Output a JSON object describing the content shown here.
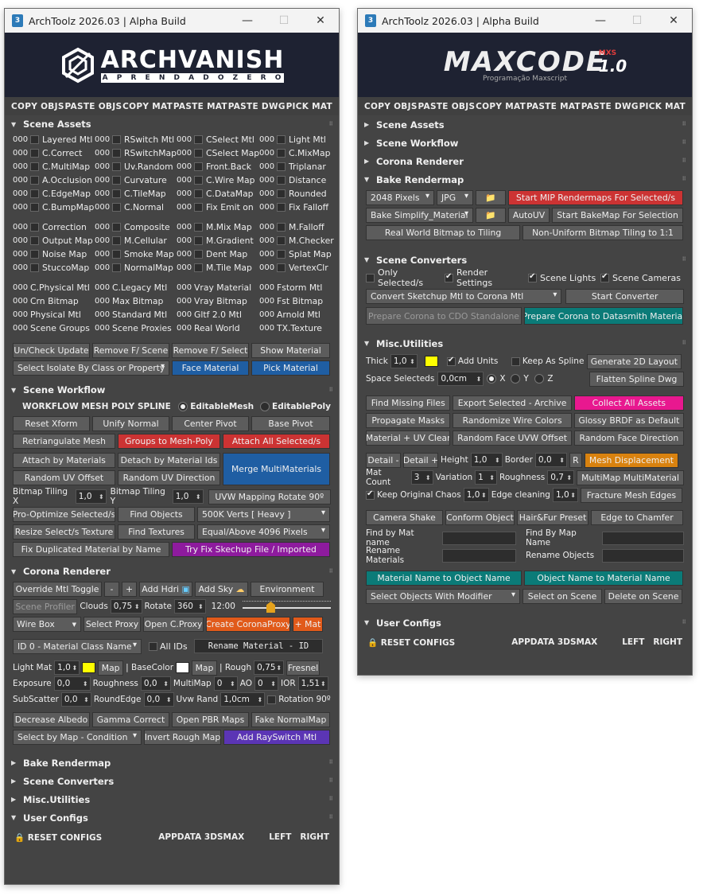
{
  "window": {
    "title": "ArchToolz 2026.03 | Alpha Build"
  },
  "logo1": {
    "big": "ARCHVANISH",
    "small": [
      "A",
      "P",
      "R",
      "E",
      "N",
      "D",
      "A",
      "D",
      "O",
      "Z",
      "E",
      "R",
      "O"
    ]
  },
  "logo2": {
    "big": "MAXCODE",
    "mxs": "MXS",
    "ver": "1.0",
    "sub": "Programação Maxscript"
  },
  "topbar": [
    "COPY OBJS",
    "PASTE OBJS",
    "COPY MAT",
    "PASTE MAT",
    "PASTE DWG",
    "PICK MAT"
  ],
  "sections": {
    "assets": "Scene Assets",
    "workflow": "Scene Workflow",
    "corona": "Corona Renderer",
    "bake": "Bake Rendermap",
    "converters": "Scene Converters",
    "misc": "Misc.Utilities",
    "user": "User Configs"
  },
  "assets": {
    "block1": [
      [
        "Layered Mtl",
        "RSwitch Mtl",
        "CSelect Mtl",
        "Light Mtl"
      ],
      [
        "C.Correct",
        "RSwitchMap",
        "CSelect Map",
        "C.MixMap"
      ],
      [
        "C.MultiMap",
        "Uv.Random",
        "Front.Back",
        "Triplanar"
      ],
      [
        "A.Occlusion",
        "Curvature",
        "C.Wire Map",
        "Distance"
      ],
      [
        "C.EdgeMap",
        "C.TileMap",
        "C.DataMap",
        "Rounded"
      ],
      [
        "C.BumpMap",
        "C.Normal",
        "Fix Emit on",
        "Fix Falloff"
      ]
    ],
    "block2": [
      [
        "Correction",
        "Composite",
        "M.Mix Map",
        "M.Falloff"
      ],
      [
        "Output Map",
        "M.Cellular",
        "M.Gradient",
        "M.Checker"
      ],
      [
        "Noise Map",
        "Smoke Map",
        "Dent Map",
        "Splat Map"
      ],
      [
        "StuccoMap",
        "NormalMap",
        "M.Tile Map",
        "VertexClr"
      ]
    ],
    "block3": [
      [
        "C.Physical Mtl",
        "C.Legacy Mtl",
        "Vray Material",
        "Fstorm Mtl"
      ],
      [
        "Crn Bitmap",
        "Max Bitmap",
        "Vray Bitmap",
        "Fst Bitmap"
      ],
      [
        "Physical Mtl",
        "Standard Mtl",
        "Gltf 2.0 Mtl",
        "Arnold Mtl"
      ],
      [
        "Scene Groups",
        "Scene Proxies",
        "Real World",
        "TX.Texture"
      ]
    ],
    "count": "000",
    "btns": [
      "Un/Check Update",
      "Remove F/ Scene",
      "Remove F/ Select",
      "Show Material"
    ],
    "isolate": "Select Isolate By Class or Property",
    "face": "Face Material",
    "pick": "Pick Material"
  },
  "workflow": {
    "label": "WORKFLOW MESH POLY SPLINE",
    "r1": "EditableMesh",
    "r2": "EditablePoly",
    "row1": [
      "Reset Xform",
      "Unify Normal",
      "Center Pivot",
      "Base Pivot"
    ],
    "row2": [
      "Retriangulate Mesh",
      "Groups to Mesh-Poly",
      "Attach All Selected/s"
    ],
    "row3": [
      "Attach by Materials",
      "Detach by Material Ids"
    ],
    "row4": [
      "Random UV Offset",
      "Random UV Direction"
    ],
    "merge": "Merge MultiMaterials",
    "tilx": "Bitmap Tiling X",
    "tilxv": "1,0",
    "tily": "Bitmap Tiling Y",
    "tilyv": "1,0",
    "uvw": "UVW Mapping Rotate 90º",
    "r5": [
      "Pro-Optimize Selected/s",
      "Find Objects"
    ],
    "verts": "500K Verts [ Heavy ]",
    "r6": [
      "Resize Select/s Texture",
      "Find Textures"
    ],
    "equal": "Equal/Above 4096 Pixels",
    "fixdup": "Fix Duplicated Material by Name",
    "tryfix": "Try Fix Skechup File / Imported"
  },
  "corona": {
    "override": "Override Mtl Toggle",
    "minus": "-",
    "plus": "+",
    "hdri": "Add Hdri",
    "sky": "Add Sky",
    "env": "Environment",
    "profiler": "Scene Profiler",
    "clouds": "Clouds",
    "cloudsv": "0,75",
    "rotate": "Rotate",
    "rotatev": "360",
    "time": "12:00",
    "slider": 0.3,
    "wirebox": "Wire Box",
    "selproxy": "Select Proxy",
    "openproxy": "Open C.Proxy",
    "createproxy": "Create CoronaProxy",
    "mat": "+ Mat",
    "idclass": "ID 0 - Material Class Name",
    "allids": "All IDs",
    "rename": "Rename Material - ID",
    "lightmat": "Light Mat",
    "lightv": "1,0",
    "lightcolor": "#ffff00",
    "map": "Map",
    "basecolor": "| BaseColor",
    "basecolorv": "#ffffff",
    "rough": "| Rough",
    "roughv": "0,75",
    "fresnel": "Fresnel",
    "exposure": "Exposure",
    "expv": "0,0",
    "roughness": "Roughness",
    "roughnessv": "0,0",
    "multimap": "MultiMap",
    "multimapv": "0",
    "ao": "AO",
    "aov": "0",
    "ior": "IOR",
    "iorv": "1,51",
    "subscatter": "SubScatter",
    "subv": "0,0",
    "roundedge": "RoundEdge",
    "roundv": "0,0",
    "uvwrand": "Uvw Rand",
    "uvwv": "1,0cm",
    "rotation": "Rotation 90º",
    "row": [
      "Decrease Albedo",
      "Gamma Correct",
      "Open PBR Maps",
      "Fake NormalMap"
    ],
    "selbymap": "Select by Map - Condition",
    "invert": "Invert Rough Map",
    "rayswitch": "Add RaySwitch Mtl"
  },
  "user": {
    "reset": "RESET CONFIGS",
    "appdata": "APPDATA 3DSMAX",
    "left": "LEFT",
    "right": "RIGHT"
  },
  "bake": {
    "pixels": "2048 Pixels",
    "fmt": "JPG",
    "startmip": "Start MIP Rendermaps For Selected/s",
    "simplify": "Bake Simplify_Material",
    "autouv": "AutoUV",
    "startbake": "Start BakeMap For Selection",
    "realworld": "Real World Bitmap to Tiling",
    "nonuniform": "Non-Uniform Bitmap Tiling to 1:1"
  },
  "conv": {
    "only": "Only Selected/s",
    "render": "Render Settings",
    "lights": "Scene Lights",
    "cams": "Scene Cameras",
    "convert": "Convert Sketchup Mtl to Corona Mtl",
    "start": "Start Converter",
    "prep1": "Prepare Corona to CDO Standalone",
    "prep2": "Prepare Corona to Datasmith Material"
  },
  "misc": {
    "thick": "Thick",
    "thickv": "1,0",
    "thickcolor": "#ffff00",
    "addunits": "Add Units",
    "keep": "Keep As Spline",
    "gen2d": "Generate 2D Layout",
    "space": "Space Selecteds",
    "spacev": "0,0cm",
    "x": "X",
    "y": "Y",
    "z": "Z",
    "flatten": "Flatten Spline Dwg",
    "r1": [
      "Find Missing Files",
      "Export Selected - Archive",
      "Collect All Assets"
    ],
    "r2": [
      "Propagate Masks",
      "Randomize Wire Colors",
      "Glossy BRDF as Default"
    ],
    "r3": [
      "Material + UV Clear",
      "Random Face UVW Offset",
      "Random Face Direction"
    ],
    "detm": "Detail -",
    "detp": "Detail +",
    "height": "Height",
    "heightv": "1,0",
    "border": "Border",
    "borderv": "0,0",
    "r": "R",
    "meshdisp": "Mesh Displacement",
    "matcount": "Mat Count",
    "matcountv": "3",
    "variation": "Variation",
    "variationv": "1",
    "roughness": "Roughness",
    "roughnessv": "0,7",
    "multimap": "MultiMap MultiMaterial",
    "keeporig": "Keep Original",
    "chaos": "Chaos",
    "chaosv": "1,0",
    "edge": "Edge cleaning",
    "edgev": "1,0",
    "fracture": "Fracture Mesh Edges",
    "r4": [
      "Camera Shake",
      "Conform Object",
      "Hair&Fur Preset",
      "Edge to Chamfer"
    ],
    "findmat": "Find by Mat name",
    "findmap": "Find By Map Name",
    "renmat": "Rename Materials",
    "renobj": "Rename Objects",
    "mat2obj": "Material Name to Object Name",
    "obj2mat": "Object Name to Material Name",
    "selmod": "Select Objects With Modifier",
    "selscene": "Select on Scene",
    "delscene": "Delete on Scene"
  }
}
